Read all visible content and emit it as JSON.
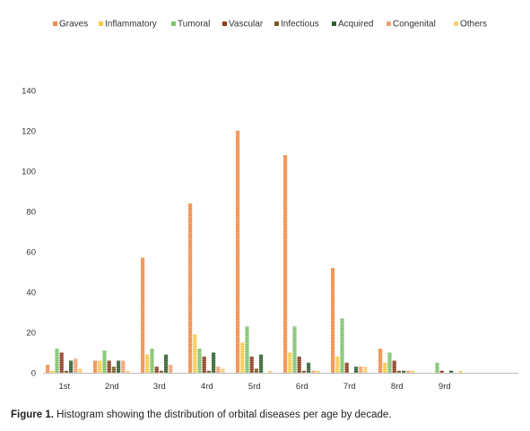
{
  "chart_data": {
    "type": "bar",
    "categories": [
      "1st",
      "2nd",
      "3rd",
      "4rd",
      "5rd",
      "6rd",
      "7rd",
      "8rd",
      "9rd"
    ],
    "series": [
      {
        "name": "Graves",
        "color": "#f08a45",
        "values": [
          4,
          6,
          57,
          84,
          120,
          108,
          52,
          12,
          0
        ]
      },
      {
        "name": "Inflammatory",
        "color": "#f7c948",
        "values": [
          1,
          6,
          9,
          19,
          15,
          10,
          8,
          5,
          0
        ]
      },
      {
        "name": "Tumoral",
        "color": "#7cc36b",
        "values": [
          12,
          11,
          12,
          12,
          23,
          23,
          27,
          10,
          5
        ]
      },
      {
        "name": "Vascular",
        "color": "#8b3a1c",
        "values": [
          10,
          6,
          3,
          8,
          8,
          8,
          5,
          6,
          1
        ]
      },
      {
        "name": "Infectious",
        "color": "#7a5a22",
        "values": [
          1,
          3,
          1,
          1,
          2,
          1,
          0,
          1,
          0
        ]
      },
      {
        "name": "Acquired",
        "color": "#2f5e2c",
        "values": [
          6,
          6,
          9,
          10,
          9,
          5,
          3,
          1,
          1
        ]
      },
      {
        "name": "Congenital",
        "color": "#f0a070",
        "values": [
          7,
          6,
          4,
          3,
          0,
          1,
          3,
          1,
          0
        ]
      },
      {
        "name": "Others",
        "color": "#f7d070",
        "values": [
          2,
          1,
          0,
          2,
          1,
          1,
          3,
          1,
          1
        ]
      }
    ],
    "title": "",
    "xlabel": "",
    "ylabel": "",
    "ylim": [
      0,
      140
    ],
    "yticks": [
      0,
      20,
      40,
      60,
      80,
      100,
      120,
      140
    ],
    "grid": false,
    "legend_position": "top"
  },
  "caption": {
    "label": "Figure 1.",
    "text": " Histogram showing the distribution of orbital diseases per age by decade."
  }
}
